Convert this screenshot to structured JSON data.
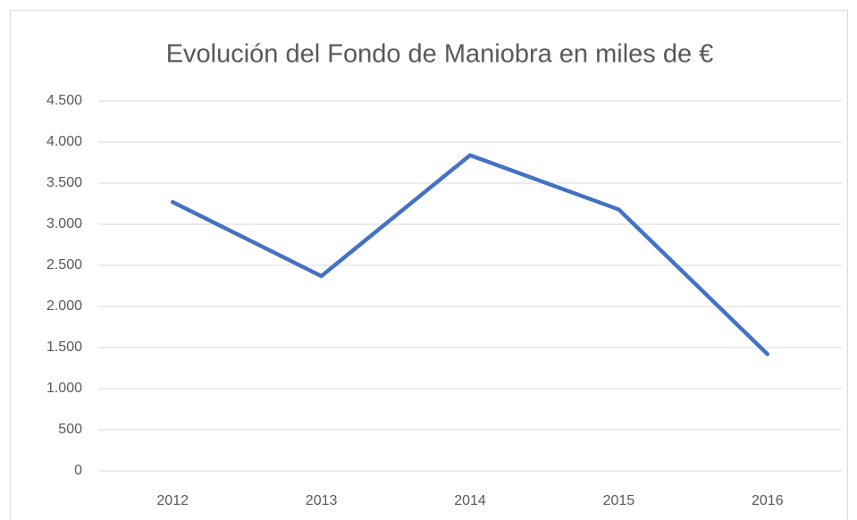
{
  "chart_data": {
    "type": "line",
    "title": "Evolución del Fondo de Maniobra en miles de €",
    "categories": [
      "2012",
      "2013",
      "2014",
      "2015",
      "2016"
    ],
    "values": [
      3270,
      2370,
      3840,
      3180,
      1420
    ],
    "color": "#4472c4",
    "ylim": [
      0,
      4500
    ],
    "yticks": [
      0,
      500,
      {
        "value": 1000,
        "label": "1.000"
      },
      {
        "value": 1500,
        "label": "1.500"
      },
      {
        "value": 2000,
        "label": "2.000"
      },
      {
        "value": 2500,
        "label": "2.500"
      },
      {
        "value": 3000,
        "label": "3.000"
      },
      {
        "value": 3500,
        "label": "3.500"
      },
      {
        "value": 4000,
        "label": "4.000"
      },
      {
        "value": 4500,
        "label": "4.500"
      }
    ],
    "grid": true
  }
}
